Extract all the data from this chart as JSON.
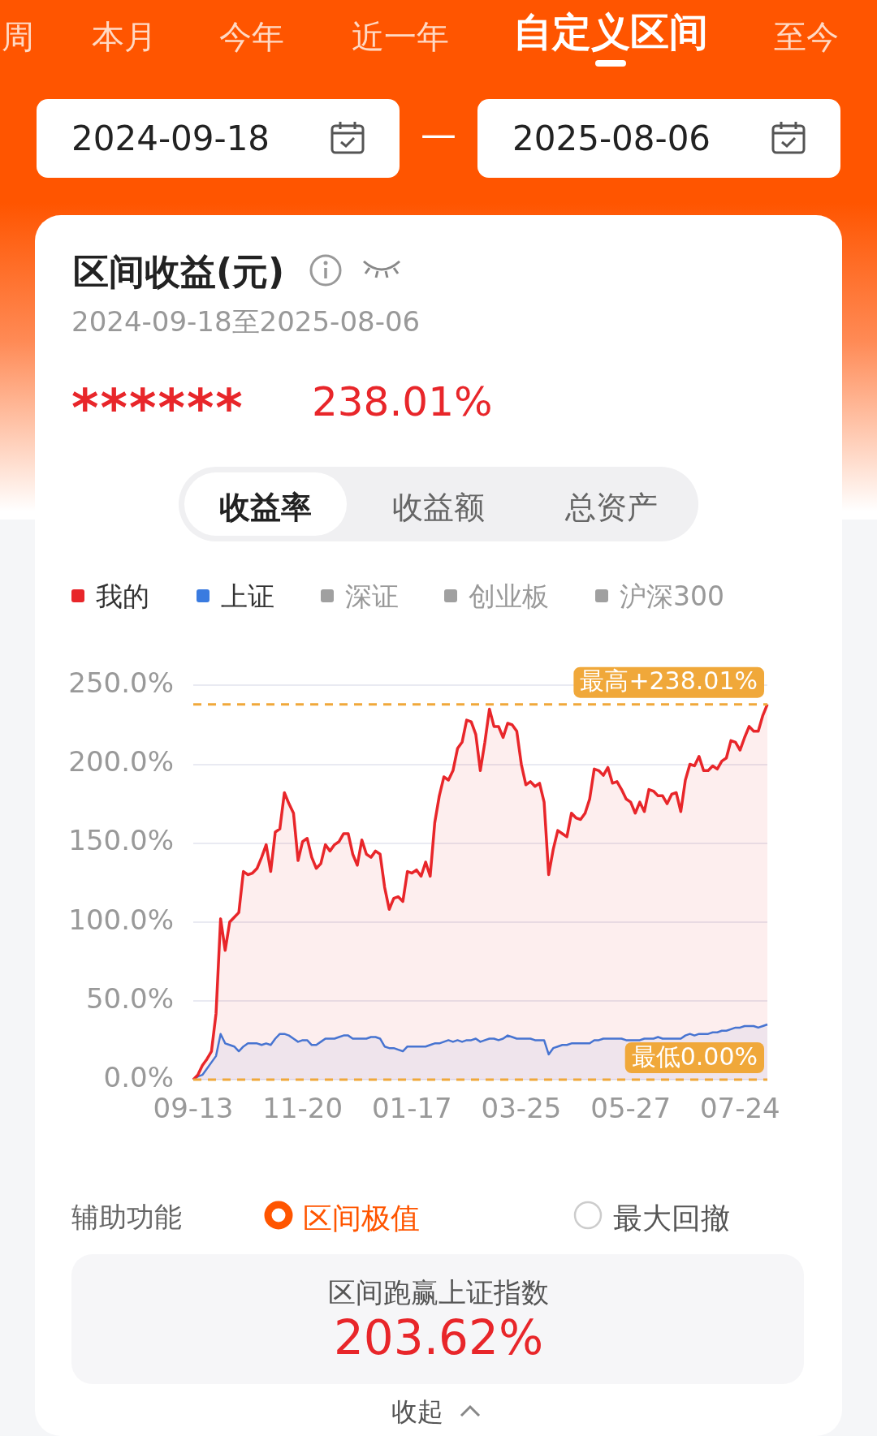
{
  "chart_data": {
    "type": "area",
    "title": "区间收益(元)",
    "subtitle": "2024-09-18至2025-08-06",
    "categories": [
      "09-13",
      null,
      null,
      null,
      null,
      null,
      null,
      null,
      null,
      null,
      null,
      null,
      null,
      null,
      null,
      null,
      null,
      null,
      null,
      null,
      null,
      null,
      null,
      null,
      "11-20",
      null,
      null,
      null,
      null,
      null,
      null,
      null,
      null,
      null,
      null,
      null,
      null,
      null,
      null,
      null,
      null,
      null,
      null,
      null,
      null,
      null,
      null,
      null,
      "01-17",
      null,
      null,
      null,
      null,
      null,
      null,
      null,
      null,
      null,
      null,
      null,
      null,
      null,
      null,
      null,
      null,
      null,
      null,
      null,
      null,
      null,
      null,
      null,
      "03-25",
      null,
      null,
      null,
      null,
      null,
      null,
      null,
      null,
      null,
      null,
      null,
      null,
      null,
      null,
      null,
      null,
      null,
      null,
      null,
      null,
      null,
      null,
      null,
      "05-27",
      null,
      null,
      null,
      null,
      null,
      null,
      null,
      null,
      null,
      null,
      null,
      null,
      null,
      null,
      null,
      null,
      null,
      null,
      null,
      null,
      null,
      null,
      null,
      "07-24",
      null,
      null,
      null,
      null,
      null,
      null
    ],
    "series": [
      {
        "name": "我的",
        "color": "#e8262a",
        "values": [
          0,
          3,
          9,
          13,
          18,
          42,
          102,
          82,
          100,
          103,
          106,
          132,
          130,
          131,
          134,
          141,
          149,
          132,
          157,
          159,
          182,
          175,
          169,
          139,
          151,
          153,
          141,
          134,
          137,
          149,
          145,
          149,
          151,
          156,
          156,
          143,
          136,
          152,
          143,
          141,
          145,
          143,
          122,
          108,
          115,
          116,
          113,
          132,
          131,
          133,
          129,
          138,
          129,
          163,
          180,
          192,
          190,
          196,
          210,
          214,
          228,
          227,
          219,
          196,
          214,
          235,
          224,
          224,
          217,
          226,
          225,
          221,
          200,
          187,
          189,
          186,
          188,
          176,
          130,
          146,
          158,
          156,
          154,
          169,
          166,
          165,
          169,
          178,
          197,
          196,
          193,
          198,
          188,
          189,
          184,
          178,
          176,
          169,
          176,
          170,
          184,
          183,
          180,
          180,
          175,
          181,
          182,
          170,
          190,
          200,
          199,
          205,
          196,
          196,
          199,
          197,
          202,
          204,
          215,
          214,
          209,
          217,
          224,
          221,
          221,
          231,
          238.01
        ]
      },
      {
        "name": "上证",
        "color": "#3a7be0",
        "values": [
          0,
          2,
          3,
          7,
          11,
          15,
          29,
          23,
          22,
          21,
          18,
          21,
          23,
          23,
          23,
          22,
          23,
          22,
          26,
          29,
          29,
          28,
          26,
          24,
          25,
          25,
          22,
          22,
          24,
          26,
          26,
          26,
          27,
          28,
          28,
          26,
          26,
          26,
          26,
          27,
          27,
          26,
          21,
          20,
          20,
          19,
          18,
          21,
          21,
          21,
          21,
          21,
          22,
          23,
          23,
          24,
          25,
          24,
          25,
          24,
          25,
          25,
          26,
          24,
          25,
          26,
          26,
          25,
          26,
          28,
          27,
          26,
          26,
          26,
          26,
          25,
          25,
          25,
          16,
          20,
          21,
          22,
          22,
          23,
          23,
          23,
          23,
          23,
          25,
          25,
          26,
          26,
          26,
          26,
          26,
          25,
          25,
          25,
          25,
          26,
          26,
          26,
          27,
          26,
          26,
          26,
          26,
          26,
          28,
          29,
          28,
          29,
          29,
          29,
          30,
          30,
          31,
          31,
          32,
          33,
          33,
          34,
          34,
          34,
          33,
          34,
          35
        ]
      }
    ],
    "ylim": [
      0,
      250
    ],
    "yticks": [
      {
        "value": 0,
        "label": "0.0%"
      },
      {
        "value": 50,
        "label": "50.0%"
      },
      {
        "value": 100,
        "label": "100.0%"
      },
      {
        "value": 150,
        "label": "150.0%"
      },
      {
        "value": 200,
        "label": "200.0%"
      },
      {
        "value": 250,
        "label": "250.0%"
      }
    ],
    "grid": "y",
    "legend": "top left",
    "ref_lines": [
      {
        "axis": "y",
        "value": 238.01,
        "label": "最高+238.01%",
        "color": "#f0a83a",
        "line_style": "dashed"
      },
      {
        "axis": "y",
        "value": 0,
        "label": "最低0.00%",
        "color": "#f0a83a",
        "line_style": "dashed"
      }
    ],
    "annotations": [
      "周",
      "本月",
      "今年",
      "近一年",
      "自定义区间",
      "至今",
      "2024-09-18",
      "—",
      "2025-08-06",
      "******",
      "238.01%",
      "收益率",
      "收益额",
      "总资产",
      "深证",
      "创业板",
      "沪深300",
      "辅助功能",
      "区间极值",
      "最大回撤",
      "区间跑赢上证指数",
      "203.62%",
      "收起"
    ]
  }
}
